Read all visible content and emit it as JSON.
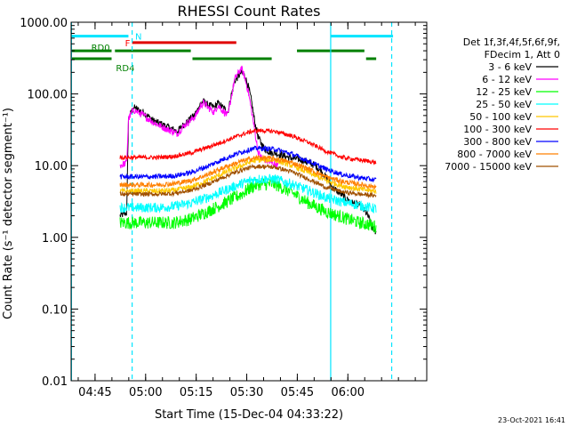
{
  "chart_data": {
    "type": "line",
    "title": "RHESSI Count Rates",
    "xlabel": "Start Time (15-Dec-04 04:33:22)",
    "ylabel": "Count Rate (s⁻¹ detector segment⁻¹)",
    "yscale": "log",
    "ylim": [
      0.01,
      1000
    ],
    "xlim_minutes": [
      4.5,
      110
    ],
    "yticks": [
      "1000.00",
      "100.00",
      "10.00",
      "1.00",
      "0.10",
      "0.01"
    ],
    "yticks_values": [
      1000,
      100,
      10,
      1,
      0.1,
      0.01
    ],
    "xticks": [
      "04:45",
      "05:00",
      "05:15",
      "05:30",
      "05:45",
      "06:00"
    ],
    "xticks_minutes": [
      11.6,
      26.6,
      41.6,
      56.6,
      71.6,
      86.6
    ],
    "legend": {
      "placement": "right",
      "header": [
        "Det 1f,3f,4f,5f,6f,9f,",
        "FDecim 1, Att 0"
      ]
    },
    "footer_date": "23-Oct-2021 16:41",
    "data_start_minute": 19,
    "data_end_minute": 95,
    "series": [
      {
        "name": "3 - 6 keV",
        "color": "#000000",
        "x": [
          19,
          21,
          21.5,
          23,
          26,
          29,
          33,
          36,
          38,
          41,
          42,
          43,
          44,
          45,
          46,
          47,
          48,
          50,
          51,
          52,
          53,
          55,
          56,
          57,
          58,
          59,
          60,
          61,
          62,
          63,
          64,
          65,
          67,
          69,
          71,
          73,
          75,
          77,
          79,
          80,
          81,
          82,
          84,
          86,
          88,
          90,
          92,
          93,
          94,
          95
        ],
        "y": [
          2.0,
          2.2,
          45,
          65,
          55,
          42,
          35,
          30,
          38,
          50,
          60,
          75,
          78,
          70,
          68,
          65,
          75,
          62,
          55,
          95,
          150,
          200,
          180,
          130,
          80,
          40,
          25,
          20,
          17,
          16,
          15,
          15,
          14,
          13,
          12.5,
          12,
          11,
          10,
          8,
          7,
          6,
          5,
          4.2,
          3.5,
          3,
          2.8,
          2.2,
          1.8,
          1.3,
          1.2
        ]
      },
      {
        "name": "6 - 12 keV",
        "color": "#ff00ff",
        "x": [
          19,
          21,
          21.5,
          23,
          26,
          29,
          33,
          36,
          38,
          41,
          42,
          43,
          44,
          45,
          46,
          47,
          48,
          50,
          51,
          52,
          53,
          55,
          56,
          57,
          58,
          59,
          60,
          61,
          62,
          63,
          64,
          65,
          66
        ],
        "y": [
          10,
          11,
          45,
          60,
          50,
          40,
          32,
          28,
          36,
          47,
          55,
          70,
          75,
          65,
          60,
          55,
          70,
          55,
          50,
          90,
          160,
          230,
          170,
          110,
          60,
          30,
          15,
          13,
          12,
          11.5,
          11,
          10.5,
          10
        ]
      },
      {
        "name": "12 - 25 keV",
        "color": "#00ff00",
        "x": [
          19,
          21,
          25,
          30,
          35,
          40,
          45,
          50,
          55,
          58,
          60,
          65,
          70,
          75,
          80,
          85,
          90,
          93,
          95
        ],
        "y": [
          1.6,
          1.6,
          1.6,
          1.6,
          1.6,
          1.8,
          2.3,
          3.0,
          4.0,
          5.0,
          5.5,
          5.5,
          4.2,
          3.0,
          2.3,
          1.9,
          1.6,
          1.5,
          1.4
        ]
      },
      {
        "name": "25 - 50 keV",
        "color": "#00ffff",
        "x": [
          19,
          21,
          25,
          30,
          35,
          40,
          45,
          50,
          55,
          58,
          60,
          65,
          70,
          75,
          80,
          85,
          90,
          93,
          95
        ],
        "y": [
          2.6,
          2.6,
          2.6,
          2.6,
          2.7,
          3.0,
          3.6,
          4.5,
          5.6,
          6.3,
          6.5,
          6.5,
          5.5,
          4.5,
          3.6,
          3.1,
          2.8,
          2.6,
          2.5
        ]
      },
      {
        "name": "50 - 100 keV",
        "color": "#ffc800",
        "x": [
          19,
          21,
          25,
          30,
          35,
          40,
          45,
          50,
          55,
          58,
          60,
          65,
          70,
          75,
          80,
          85,
          90,
          93,
          95
        ],
        "y": [
          4.4,
          4.4,
          4.4,
          4.4,
          4.5,
          5.0,
          6.2,
          8.0,
          10,
          11.5,
          12,
          12,
          10,
          8,
          6.2,
          5.2,
          4.7,
          4.5,
          4.4
        ]
      },
      {
        "name": "100 - 300 keV",
        "color": "#ff0000",
        "x": [
          19,
          21,
          25,
          30,
          35,
          40,
          45,
          50,
          55,
          58,
          60,
          65,
          70,
          75,
          80,
          85,
          90,
          93,
          95
        ],
        "y": [
          13,
          13,
          13,
          13,
          13.5,
          15,
          18,
          22,
          27,
          30,
          31,
          30,
          26,
          21,
          16,
          13,
          12,
          11.5,
          11
        ]
      },
      {
        "name": "300 - 800 keV",
        "color": "#0000ff",
        "x": [
          19,
          21,
          25,
          30,
          35,
          40,
          45,
          50,
          55,
          58,
          60,
          65,
          70,
          75,
          80,
          85,
          90,
          93,
          95
        ],
        "y": [
          7,
          7,
          7,
          7,
          7.2,
          8,
          9.8,
          12.5,
          15.5,
          17,
          17.5,
          17,
          14.5,
          11.5,
          9,
          7.5,
          6.8,
          6.5,
          6.3
        ]
      },
      {
        "name": "800 - 7000 keV",
        "color": "#ff8000",
        "x": [
          19,
          21,
          25,
          30,
          35,
          40,
          45,
          50,
          55,
          58,
          60,
          65,
          70,
          75,
          80,
          85,
          90,
          93,
          95
        ],
        "y": [
          5.4,
          5.4,
          5.4,
          5.4,
          5.6,
          6.2,
          7.5,
          9.5,
          11.5,
          12.5,
          13,
          12.5,
          11,
          9,
          7,
          6,
          5.5,
          5.2,
          5.1
        ]
      },
      {
        "name": "7000 - 15000 keV",
        "color": "#a05000",
        "x": [
          19,
          21,
          25,
          30,
          35,
          40,
          45,
          50,
          55,
          58,
          60,
          65,
          70,
          75,
          80,
          85,
          90,
          93,
          95
        ],
        "y": [
          4.0,
          4.0,
          4.0,
          4.0,
          4.1,
          4.5,
          5.5,
          7.0,
          8.7,
          9.5,
          9.8,
          9.5,
          8.2,
          6.5,
          5.0,
          4.3,
          4.0,
          3.9,
          3.8
        ]
      }
    ],
    "vertical_lines": [
      {
        "minute": 4.6,
        "style": "solid",
        "color": "#00e5ff"
      },
      {
        "minute": 22.6,
        "style": "dashed",
        "color": "#00e5ff"
      },
      {
        "minute": 81.5,
        "style": "solid",
        "color": "#00e5ff"
      },
      {
        "minute": 99.6,
        "style": "dashed",
        "color": "#00e5ff"
      }
    ],
    "flag_bars": [
      {
        "label": "N",
        "label_color": "#00e5ff",
        "color": "#00e5ff",
        "level": 640,
        "segments": [
          [
            4.6,
            21.5
          ],
          [
            81.5,
            100
          ]
        ]
      },
      {
        "label": "F",
        "label_color": "#ff0000",
        "color": "#e00000",
        "level": 520,
        "segments": [
          [
            22.6,
            53.5
          ]
        ]
      },
      {
        "label": "RD0",
        "label_color": "#008000",
        "color": "#008000",
        "level": 400,
        "segments": [
          [
            4.6,
            16.5
          ],
          [
            17.5,
            40
          ],
          [
            71.5,
            91.5
          ]
        ]
      },
      {
        "label": "RD4",
        "label_color": "#008000",
        "color": "#008000",
        "level": 310,
        "segments": [
          [
            4.6,
            16.5
          ],
          [
            40.5,
            64
          ],
          [
            92,
            95
          ]
        ]
      }
    ]
  }
}
